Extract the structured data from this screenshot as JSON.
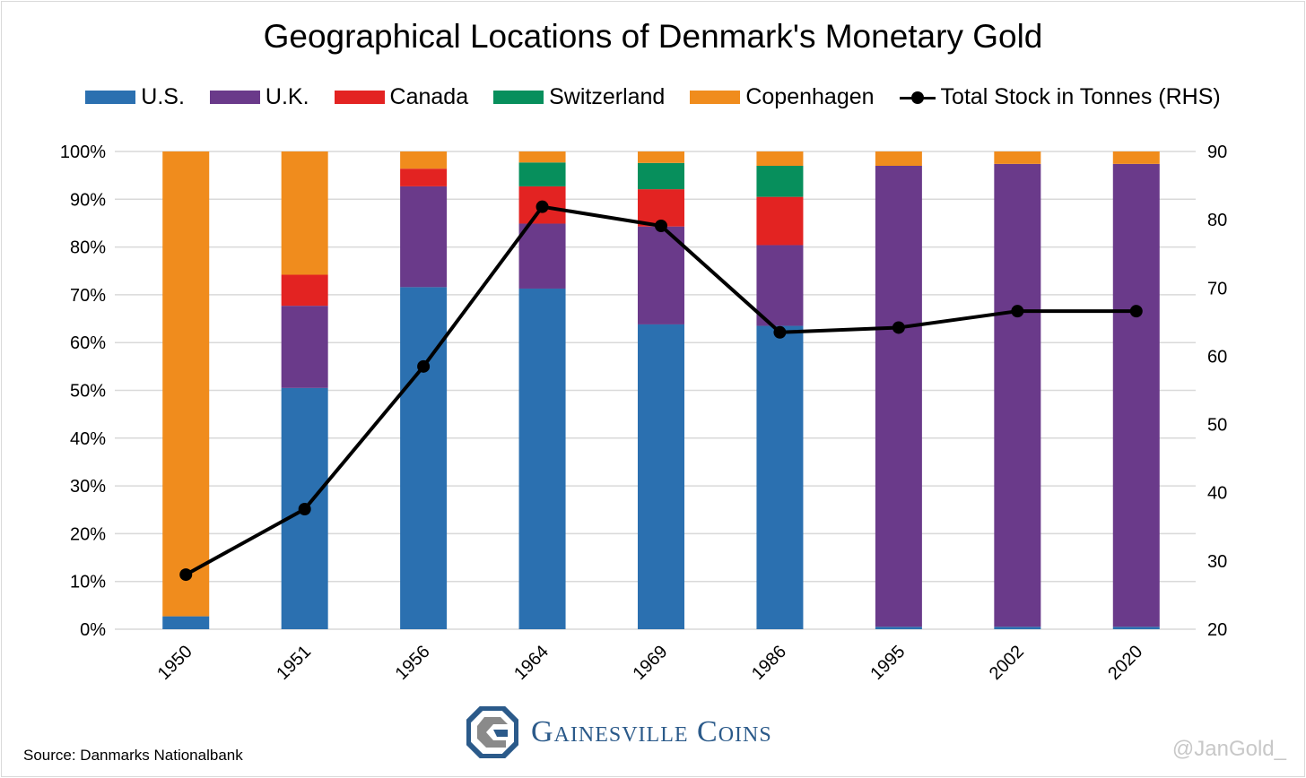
{
  "chart_data": {
    "type": "bar",
    "stacked": true,
    "title": "Geographical Locations of Denmark's Monetary Gold",
    "categories": [
      "1950",
      "1951",
      "1956",
      "1964",
      "1969",
      "1986",
      "1995",
      "2002",
      "2020"
    ],
    "series": [
      {
        "name": "U.S.",
        "color": "#2b70b0",
        "values": [
          2.7,
          50.5,
          71.6,
          71.3,
          63.8,
          63.5,
          0.5,
          0.5,
          0.5
        ]
      },
      {
        "name": "U.K.",
        "color": "#6a3a8a",
        "values": [
          0,
          17.2,
          21.1,
          13.6,
          20.5,
          16.9,
          96.5,
          96.9,
          96.9
        ]
      },
      {
        "name": "Canada",
        "color": "#e32322",
        "values": [
          0,
          6.5,
          3.7,
          7.8,
          7.8,
          10.1,
          0,
          0,
          0
        ]
      },
      {
        "name": "Switzerland",
        "color": "#078f5c",
        "values": [
          0,
          0,
          0,
          5.0,
          5.5,
          6.5,
          0,
          0,
          0
        ]
      },
      {
        "name": "Copenhagen",
        "color": "#f08c1d",
        "values": [
          97.3,
          25.8,
          3.6,
          2.3,
          2.4,
          3.0,
          3.0,
          2.6,
          2.6
        ]
      }
    ],
    "line_series": {
      "name": "Total Stock in Tonnes (RHS)",
      "color": "#000000",
      "values": [
        28.0,
        37.6,
        58.5,
        81.9,
        79.1,
        63.5,
        64.2,
        66.6,
        66.6
      ]
    },
    "y_left": {
      "min": 0,
      "max": 100,
      "ticks": [
        "0%",
        "10%",
        "20%",
        "30%",
        "40%",
        "50%",
        "60%",
        "70%",
        "80%",
        "90%",
        "100%"
      ]
    },
    "y_right": {
      "min": 20,
      "max": 90,
      "ticks": [
        "20",
        "30",
        "40",
        "50",
        "60",
        "70",
        "80",
        "90"
      ]
    },
    "grid": true,
    "legend_position": "top"
  },
  "source": "Source: Danmarks Nationalbank",
  "logo_text": "Gainesville Coins",
  "handle": "@JanGold_"
}
